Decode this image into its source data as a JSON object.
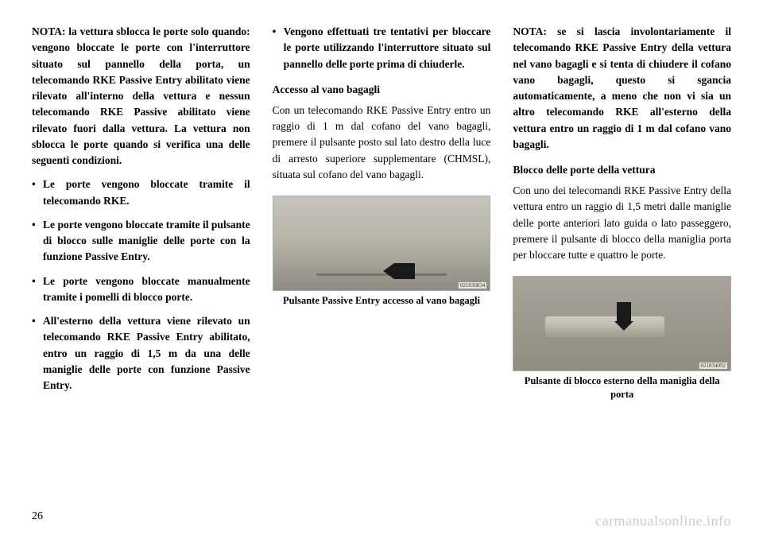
{
  "col1": {
    "intro": "NOTA: la vettura sblocca le porte solo quando: vengono bloccate le porte con l'interruttore situato sul pannello della porta, un telecomando RKE Passive Entry abilitato viene rilevato all'interno della vettura e nessun telecomando RKE Passive abilitato viene rilevato fuori dalla vettura. La vettura non sblocca le porte quando si verifica una delle seguenti condizioni.",
    "bullets": [
      "Le porte vengono bloccate tramite il telecomando RKE.",
      "Le porte vengono bloccate tramite il pulsante di blocco sulle maniglie delle porte con la funzione Passive Entry.",
      "Le porte vengono bloccate manualmente tramite i pomelli di blocco porte.",
      "All'esterno della vettura viene rilevato un telecomando RKE Passive Entry abilitato, entro un raggio di 1,5 m da una delle maniglie delle porte con funzione Passive Entry."
    ]
  },
  "col2": {
    "bullet": "Vengono effettuati tre tentativi per bloccare le porte utilizzando l'interruttore situato sul pannello delle porte prima di chiuderle.",
    "heading": "Accesso al vano bagagli",
    "body": "Con un telecomando RKE Passive Entry entro un raggio di 1 m dal cofano del vano bagagli, premere il pulsante posto sul lato destro della luce di arresto superiore supplementare (CHMSL), situata sul cofano del vano bagagli.",
    "caption": "Pulsante Passive Entry accesso al vano bagagli",
    "imgId": "021836834"
  },
  "col3": {
    "note": "NOTA: se si lascia involontariamente il telecomando RKE Passive Entry della vettura nel vano bagagli e si tenta di chiudere il cofano vano bagagli, questo si sgancia automaticamente, a meno che non vi sia un altro telecomando RKE all'esterno della vettura entro un raggio di 1 m dal cofano vano bagagli.",
    "heading": "Blocco delle porte della vettura",
    "body": "Con uno dei telecomandi RKE Passive Entry della vettura entro un raggio di 1,5 metri dalle maniglie delle porte anteriori lato guida o lato passeggero, premere il pulsante di blocco della maniglia porta per bloccare tutte e quattro le porte.",
    "caption": "Pulsante di blocco esterno della maniglia della porta",
    "imgId": "021834092"
  },
  "pageNum": "26",
  "watermark": "carmanualsonline.info"
}
